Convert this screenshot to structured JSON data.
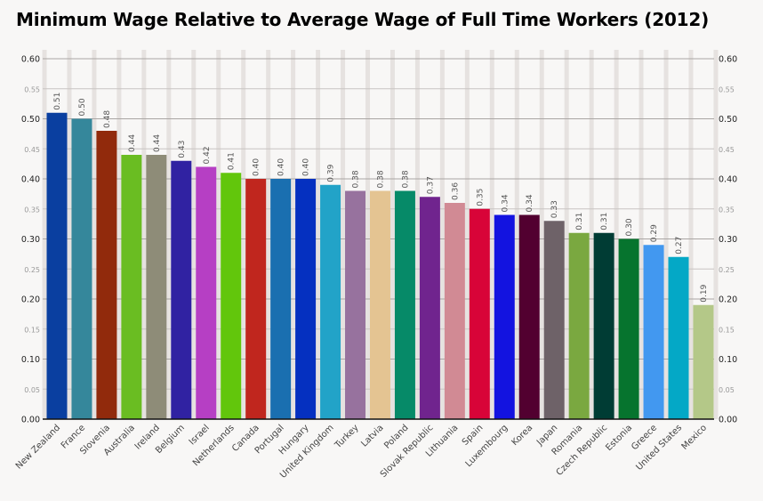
{
  "chart_data": {
    "type": "bar",
    "title": "Minimum Wage Relative to Average Wage of Full Time Workers (2012)",
    "xlabel": "",
    "ylabel": "",
    "ylim": [
      0,
      0.6
    ],
    "yticks_major": [
      "0.00",
      "0.10",
      "0.20",
      "0.30",
      "0.40",
      "0.50",
      "0.60"
    ],
    "yticks_minor": [
      "0.05",
      "0.15",
      "0.25",
      "0.35",
      "0.45",
      "0.55"
    ],
    "grid": true,
    "legend": "none",
    "categories": [
      "New Zealand",
      "France",
      "Slovenia",
      "Australia",
      "Ireland",
      "Belgium",
      "Israel",
      "Netherlands",
      "Canada",
      "Portugal",
      "Hungary",
      "United Kingdom",
      "Turkey",
      "Latvia",
      "Poland",
      "Slovak Republic",
      "Lithuania",
      "Spain",
      "Luxembourg",
      "Korea",
      "Japan",
      "Romania",
      "Czech Republic",
      "Estonia",
      "Greece",
      "United States",
      "Mexico"
    ],
    "values": [
      0.51,
      0.5,
      0.48,
      0.44,
      0.44,
      0.43,
      0.42,
      0.41,
      0.4,
      0.4,
      0.4,
      0.39,
      0.38,
      0.38,
      0.38,
      0.37,
      0.36,
      0.35,
      0.34,
      0.34,
      0.33,
      0.31,
      0.31,
      0.3,
      0.29,
      0.27,
      0.19
    ],
    "data_labels": [
      "0.51",
      "0.50",
      "0.48",
      "0.44",
      "0.44",
      "0.43",
      "0.42",
      "0.41",
      "0.40",
      "0.40",
      "0.40",
      "0.39",
      "0.38",
      "0.38",
      "0.38",
      "0.37",
      "0.36",
      "0.35",
      "0.34",
      "0.34",
      "0.33",
      "0.31",
      "0.31",
      "0.30",
      "0.29",
      "0.27",
      "0.19"
    ],
    "colors": [
      "#0a3fa0",
      "#35879b",
      "#912a0c",
      "#6abd22",
      "#8e8c78",
      "#3022a2",
      "#b63fc4",
      "#62c60c",
      "#c0261e",
      "#1a6fb0",
      "#0530c0",
      "#22a3c8",
      "#97729e",
      "#e4c492",
      "#068a68",
      "#70248e",
      "#d18a94",
      "#d80438",
      "#1313e0",
      "#520030",
      "#6e6268",
      "#7aa840",
      "#003c34",
      "#06742e",
      "#4298f0",
      "#04a8c6",
      "#b4c888"
    ]
  }
}
